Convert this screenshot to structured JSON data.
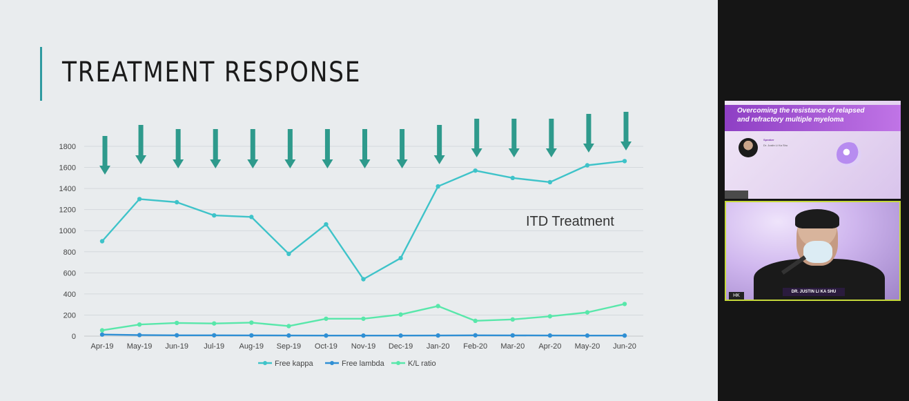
{
  "slide": {
    "title": "TREATMENT RESPONSE",
    "annotation": "ITD Treatment"
  },
  "colors": {
    "free_kappa": "#3ec3c9",
    "free_lambda": "#2f8fd4",
    "kl_ratio": "#58e7aa",
    "arrow": "#2e9a8c",
    "accent": "#2e9aa0",
    "webcam_border": "#c6d93b"
  },
  "chart_data": {
    "type": "line",
    "categories": [
      "Apr-19",
      "May-19",
      "Jun-19",
      "Jul-19",
      "Aug-19",
      "Sep-19",
      "Oct-19",
      "Nov-19",
      "Dec-19",
      "Jan-20",
      "Feb-20",
      "Mar-20",
      "Apr-20",
      "May-20",
      "Jun-20"
    ],
    "series": [
      {
        "name": "Free kappa",
        "values": [
          900,
          1300,
          1270,
          1145,
          1130,
          780,
          1060,
          540,
          740,
          1420,
          1570,
          1500,
          1460,
          1620,
          1660
        ]
      },
      {
        "name": "Free lambda",
        "values": [
          15,
          10,
          8,
          8,
          7,
          6,
          5,
          5,
          5,
          6,
          8,
          7,
          6,
          5,
          5
        ]
      },
      {
        "name": "K/L ratio",
        "values": [
          55,
          110,
          125,
          120,
          128,
          95,
          165,
          165,
          205,
          285,
          145,
          158,
          188,
          225,
          305
        ]
      }
    ],
    "ylim": [
      0,
      1800
    ],
    "yticks": [
      0,
      200,
      400,
      600,
      800,
      1000,
      1200,
      1400,
      1600,
      1800
    ],
    "grid": true,
    "legend": "bottom",
    "title": "",
    "xlabel": "",
    "ylabel": ""
  },
  "video_panel": {
    "slide_thumbnail": {
      "title": "Overcoming the resistance of relapsed and refractory multiple myeloma",
      "speaker_label": "Speaker",
      "speaker_name": "Dr. Justin Li Ka Shu"
    },
    "presenter_name": "DR. JUSTIN LI KA SHU",
    "region": "HK"
  }
}
